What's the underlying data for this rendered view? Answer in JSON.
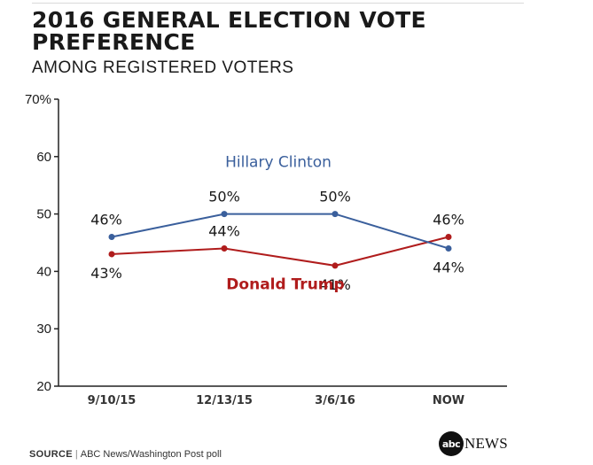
{
  "title": "2016 GENERAL ELECTION VOTE PREFERENCE",
  "subtitle": "AMONG REGISTERED VOTERS",
  "source_label": "SOURCE",
  "source_text": "ABC News/Washington Post poll",
  "logo": {
    "mark": "abc",
    "text": "NEWS"
  },
  "colors": {
    "clinton": "#3a5f9c",
    "trump": "#b01c1c",
    "axis": "#222222"
  },
  "chart_data": {
    "type": "line",
    "title": "2016 GENERAL ELECTION VOTE PREFERENCE",
    "subtitle": "AMONG REGISTERED VOTERS",
    "categories": [
      "9/10/15",
      "12/13/15",
      "3/6/16",
      "NOW"
    ],
    "ylim": [
      20,
      70
    ],
    "yticks": [
      20,
      30,
      40,
      50,
      60,
      70
    ],
    "ytick_labels": [
      "20",
      "30",
      "40",
      "50",
      "60",
      "70%"
    ],
    "series": [
      {
        "name": "Hillary Clinton",
        "values": [
          46,
          50,
          50,
          44
        ],
        "labels": [
          "46%",
          "50%",
          "50%",
          "44%"
        ],
        "label_positions": [
          "above",
          "above",
          "above",
          "below"
        ]
      },
      {
        "name": "Donald Trump",
        "values": [
          43,
          44,
          41,
          46
        ],
        "labels": [
          "43%",
          "44%",
          "41%",
          "46%"
        ],
        "label_positions": [
          "below",
          "above",
          "below",
          "above"
        ]
      }
    ]
  }
}
